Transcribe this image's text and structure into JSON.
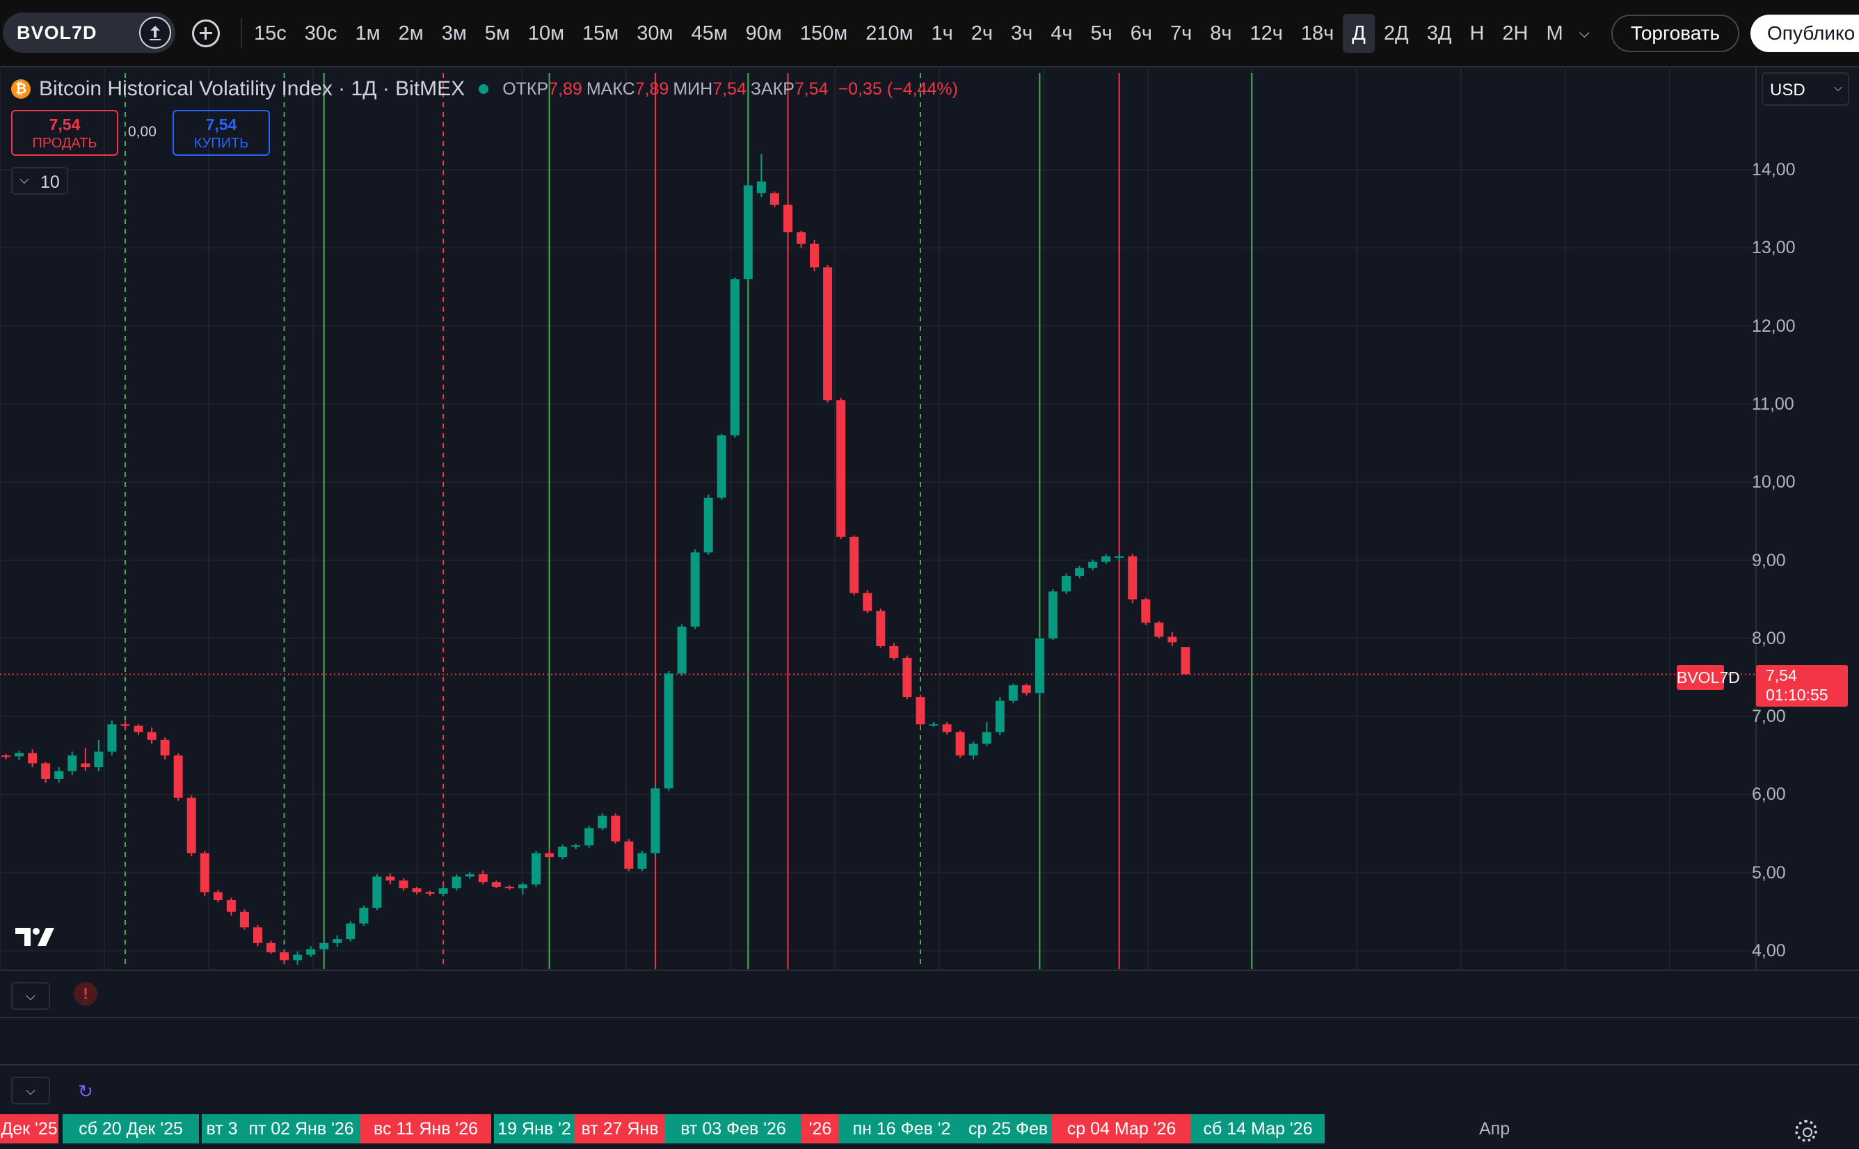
{
  "symbol": "BVOL7D",
  "toolbar": {
    "intervals": [
      "15с",
      "30с",
      "1м",
      "2м",
      "3м",
      "5м",
      "10м",
      "15м",
      "30м",
      "45м",
      "90м",
      "150м",
      "210м",
      "1ч",
      "2ч",
      "3ч",
      "4ч",
      "5ч",
      "6ч",
      "7ч",
      "8ч",
      "12ч",
      "18ч",
      "Д",
      "2Д",
      "3Д",
      "Н",
      "2Н",
      "М"
    ],
    "active_interval": "Д",
    "trade_label": "Торговать",
    "publish_label": "Опублико"
  },
  "legend": {
    "title": "Bitcoin Historical Volatility Index · 1Д · BitMEX",
    "open_label": "ОТКР",
    "open": "7,89",
    "high_label": "МАКС",
    "high": "7,89",
    "low_label": "МИН",
    "low": "7,54",
    "close_label": "ЗАКР",
    "close": "7,54",
    "change": "−0,35 (−4,44%)"
  },
  "trade_panel": {
    "sell_price": "7,54",
    "sell_label": "ПРОДАТЬ",
    "spread": "0,00",
    "buy_price": "7,54",
    "buy_label": "КУПИТЬ"
  },
  "collapsed_count": "10",
  "currency": "USD",
  "price_tag": {
    "symbol": "BVOL7D",
    "value": "7,54",
    "countdown": "01:10:55"
  },
  "colors": {
    "up": "#089981",
    "down": "#f23645",
    "background": "#131722",
    "grid": "#1e222d"
  },
  "chart_data": {
    "type": "candlestick",
    "title": "Bitcoin Historical Volatility Index · 1Д · BitMEX",
    "y_ticks": [
      "14,00",
      "13,00",
      "12,00",
      "11,00",
      "10,00",
      "9,00",
      "8,00",
      "7,00",
      "6,00",
      "5,00",
      "4,00"
    ],
    "ylim": [
      3.75,
      15.1
    ],
    "x_start": "2025-12-11",
    "current_price": 7.54,
    "candles": [
      [
        6.5,
        6.52,
        6.45,
        6.49
      ],
      [
        6.49,
        6.56,
        6.44,
        6.53
      ],
      [
        6.53,
        6.58,
        6.35,
        6.4
      ],
      [
        6.4,
        6.42,
        6.15,
        6.2
      ],
      [
        6.2,
        6.35,
        6.15,
        6.3
      ],
      [
        6.3,
        6.55,
        6.25,
        6.5
      ],
      [
        6.4,
        6.6,
        6.3,
        6.35
      ],
      [
        6.35,
        6.7,
        6.3,
        6.55
      ],
      [
        6.55,
        6.95,
        6.5,
        6.9
      ],
      [
        6.9,
        6.94,
        6.82,
        6.88
      ],
      [
        6.88,
        6.9,
        6.76,
        6.8
      ],
      [
        6.8,
        6.86,
        6.65,
        6.7
      ],
      [
        6.7,
        6.73,
        6.45,
        6.5
      ],
      [
        6.5,
        6.53,
        5.92,
        5.96
      ],
      [
        5.96,
        5.99,
        5.21,
        5.25
      ],
      [
        5.25,
        5.28,
        4.7,
        4.75
      ],
      [
        4.75,
        4.78,
        4.62,
        4.65
      ],
      [
        4.65,
        4.68,
        4.45,
        4.5
      ],
      [
        4.5,
        4.53,
        4.27,
        4.3
      ],
      [
        4.3,
        4.33,
        4.06,
        4.1
      ],
      [
        4.1,
        4.13,
        3.96,
        3.98
      ],
      [
        3.98,
        4.0,
        3.84,
        3.88
      ],
      [
        3.88,
        3.99,
        3.82,
        3.95
      ],
      [
        3.95,
        4.06,
        3.92,
        4.02
      ],
      [
        4.02,
        4.14,
        3.98,
        4.1
      ],
      [
        4.1,
        4.2,
        4.05,
        4.15
      ],
      [
        4.15,
        4.38,
        4.12,
        4.35
      ],
      [
        4.35,
        4.58,
        4.32,
        4.55
      ],
      [
        4.55,
        4.98,
        4.52,
        4.95
      ],
      [
        4.95,
        4.99,
        4.85,
        4.9
      ],
      [
        4.9,
        4.93,
        4.77,
        4.8
      ],
      [
        4.8,
        4.82,
        4.72,
        4.75
      ],
      [
        4.75,
        4.77,
        4.7,
        4.73
      ],
      [
        4.73,
        4.83,
        4.7,
        4.8
      ],
      [
        4.8,
        4.98,
        4.77,
        4.95
      ],
      [
        4.95,
        5.01,
        4.92,
        4.98
      ],
      [
        4.98,
        5.03,
        4.85,
        4.88
      ],
      [
        4.88,
        4.9,
        4.8,
        4.82
      ],
      [
        4.82,
        4.84,
        4.78,
        4.8
      ],
      [
        4.8,
        4.87,
        4.72,
        4.85
      ],
      [
        4.85,
        5.28,
        4.82,
        5.25
      ],
      [
        5.25,
        5.31,
        5.18,
        5.2
      ],
      [
        5.2,
        5.36,
        5.17,
        5.33
      ],
      [
        5.33,
        5.37,
        5.3,
        5.35
      ],
      [
        5.35,
        5.6,
        5.32,
        5.57
      ],
      [
        5.57,
        5.76,
        5.54,
        5.73
      ],
      [
        5.73,
        5.76,
        5.37,
        5.4
      ],
      [
        5.4,
        5.43,
        5.02,
        5.05
      ],
      [
        5.05,
        5.28,
        5.02,
        5.25
      ],
      [
        5.25,
        6.12,
        5.22,
        6.08
      ],
      [
        6.08,
        7.58,
        6.05,
        7.55
      ],
      [
        7.55,
        8.18,
        7.52,
        8.15
      ],
      [
        8.15,
        9.14,
        8.12,
        9.1
      ],
      [
        9.1,
        9.84,
        9.07,
        9.8
      ],
      [
        9.8,
        10.62,
        9.77,
        10.6
      ],
      [
        10.6,
        12.62,
        10.57,
        12.6
      ],
      [
        12.6,
        13.84,
        12.57,
        13.8
      ],
      [
        13.7,
        14.2,
        13.65,
        13.85
      ],
      [
        13.7,
        13.72,
        13.52,
        13.55
      ],
      [
        13.55,
        13.58,
        13.18,
        13.2
      ],
      [
        13.2,
        13.22,
        13.0,
        13.05
      ],
      [
        13.05,
        13.1,
        12.7,
        12.75
      ],
      [
        12.75,
        12.78,
        11.02,
        11.05
      ],
      [
        11.05,
        11.08,
        9.27,
        9.3
      ],
      [
        9.3,
        9.32,
        8.55,
        8.58
      ],
      [
        8.58,
        8.62,
        8.32,
        8.35
      ],
      [
        8.35,
        8.38,
        7.88,
        7.9
      ],
      [
        7.9,
        7.94,
        7.72,
        7.75
      ],
      [
        7.75,
        7.78,
        7.22,
        7.25
      ],
      [
        7.25,
        7.28,
        6.87,
        6.9
      ],
      [
        6.9,
        6.93,
        6.87,
        6.9
      ],
      [
        6.9,
        6.93,
        6.77,
        6.8
      ],
      [
        6.8,
        6.82,
        6.47,
        6.5
      ],
      [
        6.5,
        6.68,
        6.45,
        6.65
      ],
      [
        6.65,
        6.93,
        6.62,
        6.8
      ],
      [
        6.8,
        7.25,
        6.76,
        7.2
      ],
      [
        7.2,
        7.42,
        7.17,
        7.4
      ],
      [
        7.4,
        7.42,
        7.27,
        7.3
      ],
      [
        7.3,
        8.02,
        7.27,
        8.0
      ],
      [
        8.0,
        8.63,
        7.98,
        8.6
      ],
      [
        8.6,
        8.83,
        8.57,
        8.8
      ],
      [
        8.8,
        8.93,
        8.77,
        8.9
      ],
      [
        8.9,
        9.01,
        8.87,
        8.98
      ],
      [
        8.98,
        9.08,
        8.95,
        9.05
      ],
      [
        9.05,
        9.08,
        9.0,
        9.05
      ],
      [
        9.05,
        9.08,
        8.45,
        8.5
      ],
      [
        8.5,
        8.52,
        8.17,
        8.2
      ],
      [
        8.2,
        8.22,
        8.0,
        8.02
      ],
      [
        8.02,
        8.08,
        7.9,
        7.95
      ],
      [
        7.89,
        7.89,
        7.54,
        7.54
      ]
    ],
    "vlines": [
      {
        "date": "2025-12-20",
        "style": "dashed",
        "color": "green"
      },
      {
        "date": "2026-01-01",
        "style": "dashed",
        "color": "green"
      },
      {
        "date": "2026-01-04",
        "style": "solid",
        "color": "green"
      },
      {
        "date": "2026-01-13",
        "style": "dashed",
        "color": "red"
      },
      {
        "date": "2026-01-21",
        "style": "solid",
        "color": "green"
      },
      {
        "date": "2026-01-29",
        "style": "solid",
        "color": "red"
      },
      {
        "date": "2026-02-05",
        "style": "solid",
        "color": "green"
      },
      {
        "date": "2026-02-08",
        "style": "solid",
        "color": "red"
      },
      {
        "date": "2026-02-18",
        "style": "dashed",
        "color": "green"
      },
      {
        "date": "2026-02-27",
        "style": "solid",
        "color": "green"
      },
      {
        "date": "2026-03-05",
        "style": "solid",
        "color": "red"
      },
      {
        "date": "2026-03-15",
        "style": "solid",
        "color": "green"
      }
    ],
    "time_labels": [
      {
        "text": "Дек '25",
        "color": "red"
      },
      {
        "text": "сб 20 Дек '25",
        "color": "green"
      },
      {
        "text": "вт 3",
        "color": "green"
      },
      {
        "text": "пт 02 Янв '26",
        "color": "green"
      },
      {
        "text": "вс 11 Янв '26",
        "color": "red"
      },
      {
        "text": "19 Янв '2",
        "color": "green"
      },
      {
        "text": "вт 27 Янв",
        "color": "red"
      },
      {
        "text": "вт 03 Фев '26",
        "color": "green"
      },
      {
        "text": "'26",
        "color": "red"
      },
      {
        "text": "пн 16 Фев '2",
        "color": "green"
      },
      {
        "text": "ср 25 Фев",
        "color": "green"
      },
      {
        "text": "ср 04 Мар '26",
        "color": "red"
      },
      {
        "text": "сб 14 Мар '26",
        "color": "green"
      },
      {
        "text": "Апр",
        "color": "none"
      }
    ]
  }
}
